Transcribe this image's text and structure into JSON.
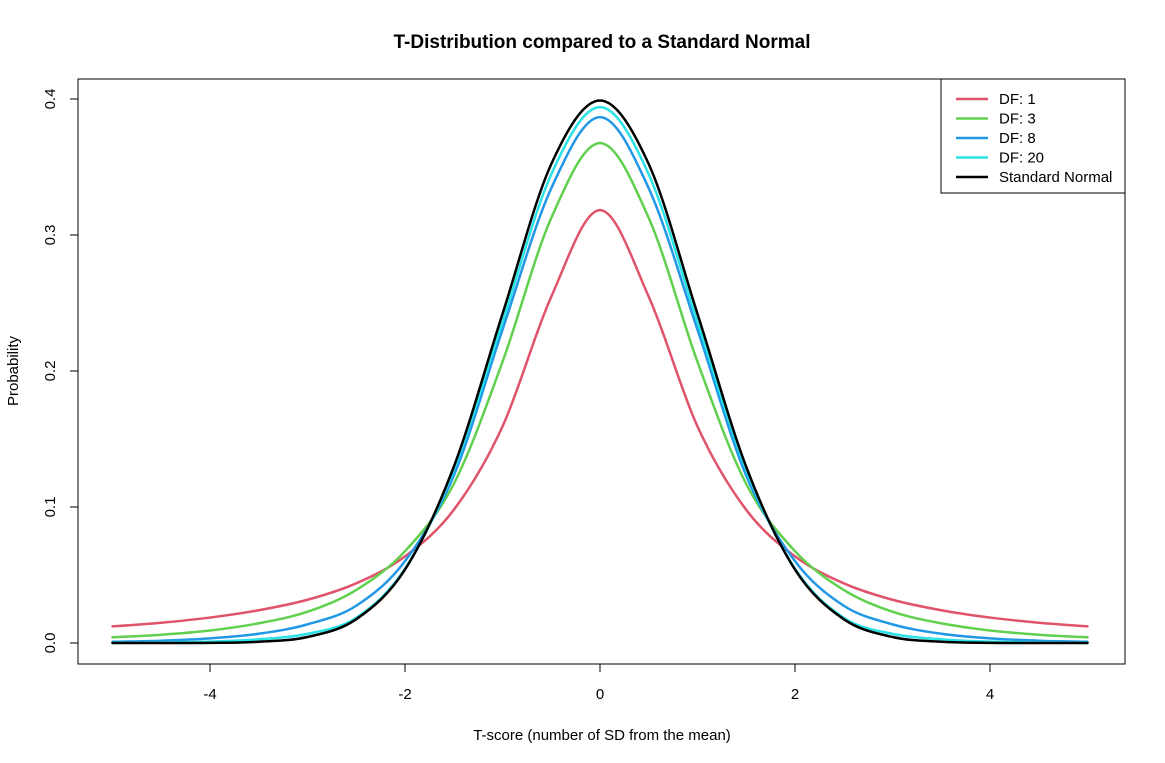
{
  "chart_data": {
    "type": "line",
    "title": "T-Distribution compared to a Standard Normal",
    "xlabel": "T-score (number of SD from the mean)",
    "ylabel": "Probability",
    "xlim": [
      -5,
      5
    ],
    "ylim": [
      0,
      0.4
    ],
    "x_ticks": [
      -4,
      -2,
      0,
      2,
      4
    ],
    "x_tick_labels": [
      "-4",
      "-2",
      "0",
      "2",
      "4"
    ],
    "y_ticks": [
      0.0,
      0.1,
      0.2,
      0.3,
      0.4
    ],
    "y_tick_labels": [
      "0.0",
      "0.1",
      "0.2",
      "0.3",
      "0.4"
    ],
    "grid": false,
    "legend_position": "top-right",
    "x": [
      -5,
      -4.5,
      -4,
      -3.5,
      -3,
      -2.5,
      -2,
      -1.5,
      -1,
      -0.5,
      0,
      0.5,
      1,
      1.5,
      2,
      2.5,
      3,
      3.5,
      4,
      4.5,
      5
    ],
    "series": [
      {
        "name": "DF: 1",
        "color": "#DF536B",
        "values": [
          0.0122,
          0.0149,
          0.0187,
          0.0241,
          0.0318,
          0.0439,
          0.0637,
          0.0979,
          0.1592,
          0.2546,
          0.3183,
          0.2546,
          0.1592,
          0.0979,
          0.0637,
          0.0439,
          0.0318,
          0.0241,
          0.0187,
          0.0149,
          0.0122
        ]
      },
      {
        "name": "DF: 3",
        "color": "#61D04F",
        "values": [
          0.0042,
          0.0061,
          0.0092,
          0.0145,
          0.023,
          0.039,
          0.0675,
          0.1169,
          0.2067,
          0.3125,
          0.3676,
          0.3125,
          0.2067,
          0.1169,
          0.0675,
          0.039,
          0.023,
          0.0145,
          0.0092,
          0.0061,
          0.0042
        ]
      },
      {
        "name": "DF: 8",
        "color": "#2297E6",
        "values": [
          0.0009,
          0.0017,
          0.0034,
          0.0068,
          0.0137,
          0.0274,
          0.0602,
          0.123,
          0.2304,
          0.3343,
          0.3867,
          0.3343,
          0.2304,
          0.123,
          0.0602,
          0.0274,
          0.0137,
          0.0068,
          0.0034,
          0.0017,
          0.0009
        ]
      },
      {
        "name": "DF: 20",
        "color": "#28E2E5",
        "values": [
          0.0001,
          0.0004,
          0.001,
          0.0027,
          0.0067,
          0.0185,
          0.0546,
          0.1273,
          0.236,
          0.3446,
          0.394,
          0.3446,
          0.236,
          0.1273,
          0.0546,
          0.0185,
          0.0067,
          0.0027,
          0.001,
          0.0004,
          0.0001
        ]
      },
      {
        "name": "Standard Normal",
        "color": "#000000",
        "values": [
          0.0,
          0.0,
          0.0001,
          0.0009,
          0.0044,
          0.0175,
          0.054,
          0.1295,
          0.242,
          0.3521,
          0.3989,
          0.3521,
          0.242,
          0.1295,
          0.054,
          0.0175,
          0.0044,
          0.0009,
          0.0001,
          0.0,
          0.0
        ]
      }
    ]
  }
}
